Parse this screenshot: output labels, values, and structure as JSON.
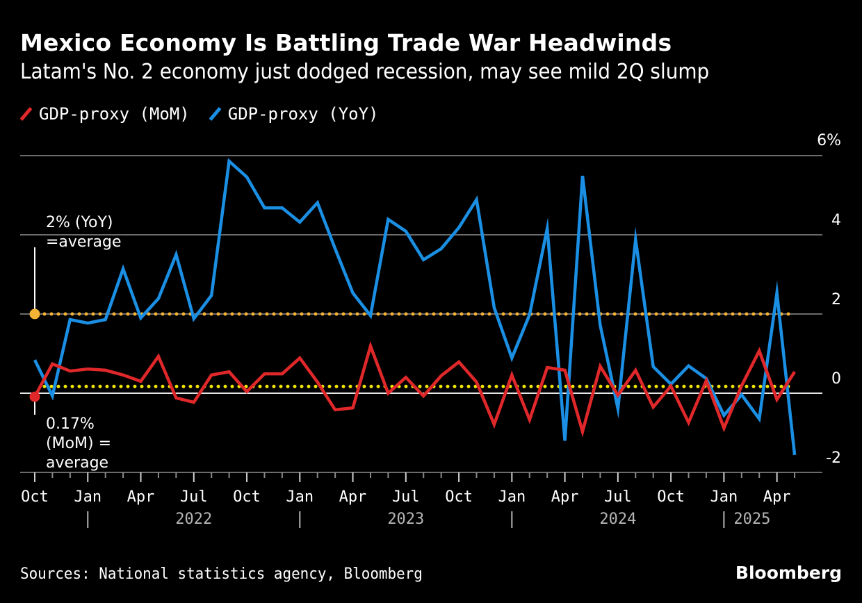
{
  "header": {
    "title": "Mexico Economy Is Battling Trade War Headwinds",
    "subtitle": "Latam's No. 2 economy just dodged recession, may see mild 2Q slump"
  },
  "footer": {
    "source": "Sources: National statistics agency, Bloomberg",
    "brand": "Bloomberg"
  },
  "colors": {
    "background": "#000000",
    "mom": "#e0282a",
    "yoy": "#1a8fe3",
    "yoy_average": "#f5b335",
    "mom_average": "#f2e600",
    "gridline": "#6b6b6b",
    "zero_line": "#e6e6e6"
  },
  "chart_data": {
    "type": "line",
    "title": "Mexico Economy Is Battling Trade War Headwinds",
    "subtitle": "Latam's No. 2 economy just dodged recession, may see mild 2Q slump",
    "xlabel": "",
    "ylabel": "",
    "y_unit": "%",
    "ylim": [
      -2,
      6
    ],
    "yticks": [
      6,
      4,
      2,
      0,
      -2
    ],
    "ytick_labels": [
      "6%",
      "4",
      "2",
      "0",
      "-2"
    ],
    "y_axis_position": "right",
    "grid": true,
    "legend_position": "top-left",
    "x": [
      "2021-10",
      "2021-11",
      "2021-12",
      "2022-01",
      "2022-02",
      "2022-03",
      "2022-04",
      "2022-05",
      "2022-06",
      "2022-07",
      "2022-08",
      "2022-09",
      "2022-10",
      "2022-11",
      "2022-12",
      "2023-01",
      "2023-02",
      "2023-03",
      "2023-04",
      "2023-05",
      "2023-06",
      "2023-07",
      "2023-08",
      "2023-09",
      "2023-10",
      "2023-11",
      "2023-12",
      "2024-01",
      "2024-02",
      "2024-03",
      "2024-04",
      "2024-05",
      "2024-06",
      "2024-07",
      "2024-08",
      "2024-09",
      "2024-10",
      "2024-11",
      "2024-12",
      "2025-01",
      "2025-02",
      "2025-03",
      "2025-04",
      "2025-05"
    ],
    "xtick_labels": [
      {
        "index": 0,
        "label": "Oct"
      },
      {
        "index": 3,
        "label": "Jan"
      },
      {
        "index": 6,
        "label": "Apr"
      },
      {
        "index": 9,
        "label": "Jul"
      },
      {
        "index": 12,
        "label": "Oct"
      },
      {
        "index": 15,
        "label": "Jan"
      },
      {
        "index": 18,
        "label": "Apr"
      },
      {
        "index": 21,
        "label": "Jul"
      },
      {
        "index": 24,
        "label": "Oct"
      },
      {
        "index": 27,
        "label": "Jan"
      },
      {
        "index": 30,
        "label": "Apr"
      },
      {
        "index": 33,
        "label": "Jul"
      },
      {
        "index": 36,
        "label": "Oct"
      },
      {
        "index": 39,
        "label": "Jan"
      },
      {
        "index": 42,
        "label": "Apr"
      }
    ],
    "year_labels": [
      {
        "index": 9,
        "label": "2022"
      },
      {
        "index": 21,
        "label": "2023"
      },
      {
        "index": 33,
        "label": "2024"
      },
      {
        "index": 41,
        "label": "2025"
      }
    ],
    "year_separators": [
      3,
      15,
      27,
      39
    ],
    "series": [
      {
        "name": "GDP-proxy (MoM)",
        "color": "#e0282a",
        "values": [
          -0.09,
          0.74,
          0.56,
          0.61,
          0.58,
          0.46,
          0.3,
          0.93,
          -0.12,
          -0.23,
          0.46,
          0.54,
          0.04,
          0.49,
          0.49,
          0.89,
          0.28,
          -0.42,
          -0.37,
          1.19,
          0.0,
          0.4,
          -0.07,
          0.44,
          0.79,
          0.28,
          -0.79,
          0.46,
          -0.67,
          0.65,
          0.58,
          -0.97,
          0.68,
          -0.05,
          0.58,
          -0.35,
          0.18,
          -0.74,
          0.32,
          -0.88,
          0.19,
          1.07,
          -0.16,
          0.54
        ]
      },
      {
        "name": "GDP-proxy (YoY)",
        "color": "#1a8fe3",
        "values": [
          0.84,
          -0.07,
          1.86,
          1.77,
          1.86,
          3.14,
          1.9,
          2.39,
          3.5,
          1.88,
          2.47,
          5.86,
          5.46,
          4.68,
          4.68,
          4.32,
          4.81,
          3.65,
          2.53,
          1.96,
          4.39,
          4.09,
          3.37,
          3.65,
          4.18,
          4.89,
          2.16,
          0.89,
          1.98,
          4.16,
          -1.2,
          5.49,
          1.72,
          -0.39,
          3.88,
          0.67,
          0.23,
          0.69,
          0.37,
          -0.56,
          -0.04,
          -0.65,
          2.53,
          -1.56
        ]
      }
    ],
    "reference_lines": [
      {
        "name": "YoY average",
        "value": 2.0,
        "color": "#f5b335",
        "style": "dotted",
        "annotation": [
          "2% (YoY)",
          "=average"
        ]
      },
      {
        "name": "MoM average",
        "value": 0.17,
        "color": "#f2e600",
        "style": "dotted",
        "annotation": [
          "0.17%",
          "(MoM) =",
          "average"
        ]
      }
    ]
  }
}
